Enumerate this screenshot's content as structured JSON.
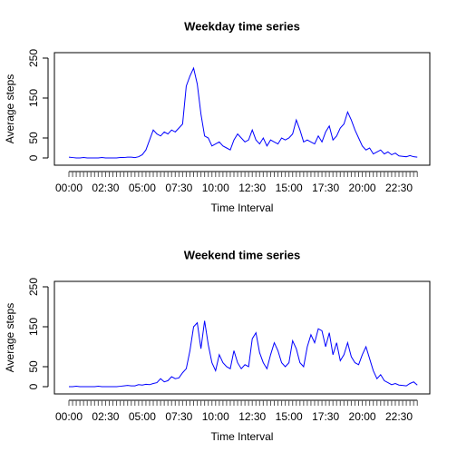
{
  "chart_data": [
    {
      "type": "line",
      "title": "Weekday time series",
      "xlabel": "Time Interval",
      "ylabel": "Average steps",
      "categories": [
        "00:00",
        null,
        null,
        null,
        null,
        null,
        null,
        null,
        null,
        null,
        "02:30",
        null,
        null,
        null,
        null,
        null,
        null,
        null,
        null,
        null,
        "05:00",
        null,
        null,
        null,
        null,
        null,
        null,
        null,
        null,
        null,
        "07:30",
        null,
        null,
        null,
        null,
        null,
        null,
        null,
        null,
        null,
        "10:00",
        null,
        null,
        null,
        null,
        null,
        null,
        null,
        null,
        null,
        "12:30",
        null,
        null,
        null,
        null,
        null,
        null,
        null,
        null,
        null,
        "15:00",
        null,
        null,
        null,
        null,
        null,
        null,
        null,
        null,
        null,
        "17:30",
        null,
        null,
        null,
        null,
        null,
        null,
        null,
        null,
        null,
        "20:00",
        null,
        null,
        null,
        null,
        null,
        null,
        null,
        null,
        null,
        "22:30",
        null,
        null,
        null,
        null,
        null
      ],
      "series": [
        {
          "color": "#0000ff",
          "values": [
            2,
            1,
            0,
            0,
            1,
            0,
            0,
            0,
            0,
            1,
            0,
            0,
            0,
            0,
            1,
            1,
            2,
            2,
            1,
            3,
            8,
            20,
            45,
            70,
            60,
            55,
            65,
            60,
            70,
            65,
            75,
            85,
            180,
            205,
            225,
            185,
            110,
            55,
            50,
            30,
            35,
            40,
            30,
            25,
            20,
            45,
            60,
            50,
            40,
            45,
            70,
            45,
            35,
            50,
            30,
            45,
            40,
            35,
            50,
            45,
            50,
            60,
            95,
            70,
            40,
            45,
            40,
            35,
            55,
            40,
            65,
            80,
            45,
            55,
            75,
            85,
            115,
            95,
            70,
            50,
            30,
            20,
            25,
            10,
            15,
            20,
            10,
            15,
            8,
            12,
            5,
            4,
            3,
            6,
            3,
            2
          ]
        }
      ],
      "ylim": [
        0,
        250
      ],
      "yticks": [
        0,
        50,
        150,
        250
      ]
    },
    {
      "type": "line",
      "title": "Weekend time series",
      "xlabel": "Time Interval",
      "ylabel": "Average steps",
      "categories": [
        "00:00",
        null,
        null,
        null,
        null,
        null,
        null,
        null,
        null,
        null,
        "02:30",
        null,
        null,
        null,
        null,
        null,
        null,
        null,
        null,
        null,
        "05:00",
        null,
        null,
        null,
        null,
        null,
        null,
        null,
        null,
        null,
        "07:30",
        null,
        null,
        null,
        null,
        null,
        null,
        null,
        null,
        null,
        "10:00",
        null,
        null,
        null,
        null,
        null,
        null,
        null,
        null,
        null,
        "12:30",
        null,
        null,
        null,
        null,
        null,
        null,
        null,
        null,
        null,
        "15:00",
        null,
        null,
        null,
        null,
        null,
        null,
        null,
        null,
        null,
        "17:30",
        null,
        null,
        null,
        null,
        null,
        null,
        null,
        null,
        null,
        "20:00",
        null,
        null,
        null,
        null,
        null,
        null,
        null,
        null,
        null,
        "22:30",
        null,
        null,
        null,
        null,
        null
      ],
      "series": [
        {
          "color": "#0000ff",
          "values": [
            0,
            0,
            1,
            0,
            0,
            0,
            0,
            0,
            1,
            0,
            0,
            0,
            0,
            0,
            1,
            2,
            3,
            2,
            2,
            5,
            4,
            6,
            5,
            8,
            10,
            20,
            12,
            15,
            25,
            20,
            22,
            35,
            45,
            90,
            150,
            160,
            95,
            165,
            105,
            60,
            40,
            80,
            60,
            50,
            45,
            90,
            60,
            45,
            55,
            50,
            120,
            135,
            85,
            60,
            45,
            80,
            110,
            90,
            60,
            50,
            60,
            115,
            95,
            60,
            50,
            100,
            130,
            110,
            145,
            140,
            100,
            135,
            80,
            110,
            65,
            80,
            110,
            75,
            60,
            55,
            80,
            100,
            70,
            40,
            20,
            30,
            15,
            10,
            5,
            8,
            4,
            3,
            2,
            8,
            12,
            4
          ]
        }
      ],
      "ylim": [
        0,
        250
      ],
      "yticks": [
        0,
        50,
        150,
        250
      ]
    }
  ]
}
